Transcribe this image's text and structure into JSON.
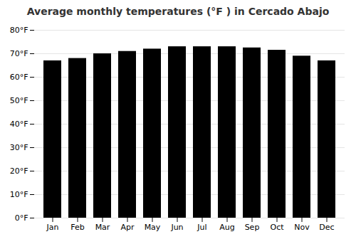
{
  "chart_data": {
    "type": "bar",
    "title": "Average monthly temperatures (°F ) in Cercado Abajo",
    "categories": [
      "Jan",
      "Feb",
      "Mar",
      "Apr",
      "May",
      "Jun",
      "Jul",
      "Aug",
      "Sep",
      "Oct",
      "Nov",
      "Dec"
    ],
    "values": [
      67,
      68,
      70,
      71,
      72,
      73,
      73,
      73,
      72.5,
      71.5,
      69,
      67
    ],
    "ylim": [
      0,
      80
    ],
    "yticks": [
      {
        "value": 0,
        "label": "0°F"
      },
      {
        "value": 10,
        "label": "10°F"
      },
      {
        "value": 20,
        "label": "20°F"
      },
      {
        "value": 30,
        "label": "30°F"
      },
      {
        "value": 40,
        "label": "40°F"
      },
      {
        "value": 50,
        "label": "50°F"
      },
      {
        "value": 60,
        "label": "60°F"
      },
      {
        "value": 70,
        "label": "70°F"
      },
      {
        "value": 80,
        "label": "80°F"
      }
    ],
    "grid": true
  }
}
